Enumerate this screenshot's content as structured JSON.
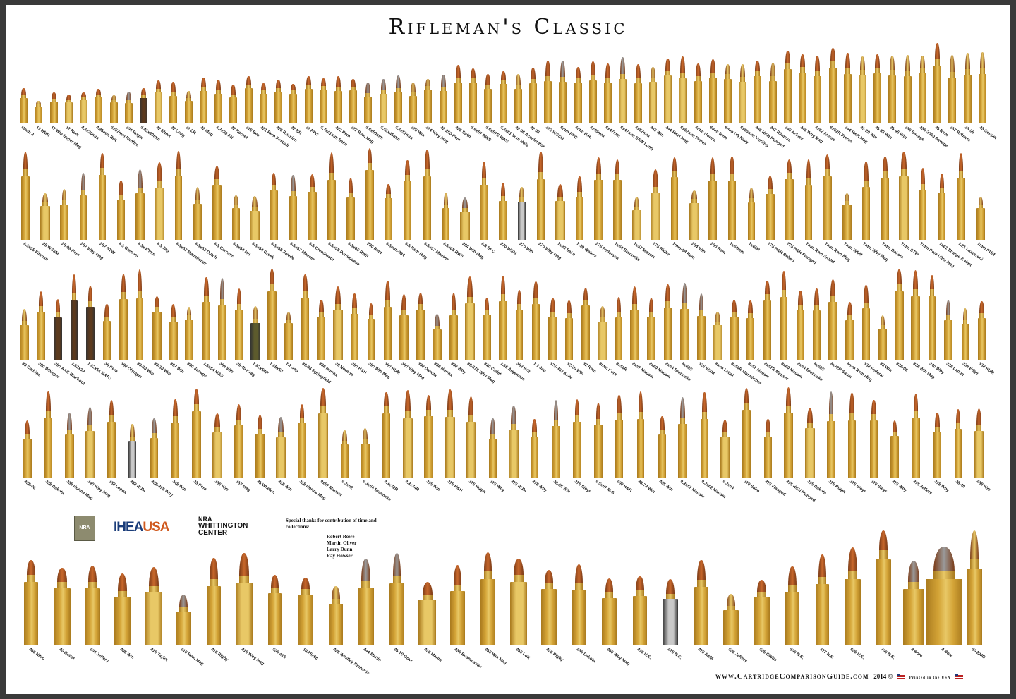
{
  "title": "Rifleman's Classic",
  "colors": {
    "brass": "#d4a437",
    "brass_light": "#e8c866",
    "brass_dark": "#a97a1e",
    "copper": "#c8682c",
    "lead": "#9a9a9a",
    "nickel": "#c9c9c9",
    "olive": "#5d5b2d",
    "brown": "#5c3a1e"
  },
  "rows": [
    [
      "Mach 2",
      "17 HMR",
      "17 Win Super Mag",
      "17 Rem",
      "4.6x30mm",
      "4.85mm Brit",
      "5x57mm Rimfire",
      "204 Ruger",
      "5.45x39mm",
      "22 Short",
      "22 Long",
      "22 LR",
      "22 Mag",
      "5.7x28 FN",
      "22 Hornet",
      "218 Bee",
      "221 Rem Fireball",
      "220 Russian",
      "22 BR",
      "22 PPC",
      "5.7x41mm Sako",
      "222 Rem",
      "222 Rem Mag",
      "5.6x50mm",
      "5.56x45mm",
      "5.6x57mm",
      "225 Win",
      "224 Wby Mag",
      "22-250 Rem",
      "220 Swift",
      "5.6x57 RWS",
      "5.6x57R RWS",
      "5.6x61 Vom Hofe",
      "22-06 Accelerator",
      "22-06",
      "223 WSSM",
      "6mm PPC",
      "6mm B.R.",
      "6x45mm",
      "6x47mm",
      "6x47mm SAW Long",
      "6x57mm",
      "243 Win",
      "244 H&H Mag",
      "6x62mm Freres",
      "6mm Norma",
      "6mm Rem",
      "6mm US Navy",
      "6x65mm Vierling",
      "240 H&H Flanged",
      "242 Rimless",
      "245 Ackley",
      "240 Wby Mag",
      "6x62 Freres",
      "6x62R Freres",
      "244 H&H Mag",
      "25-20 Win",
      "25-35 Win",
      "25-45 Win",
      "250 Savage",
      "250-3000 Savage",
      "25 Rem",
      "257 Roberts",
      "25-06",
      "25 Souper"
    ],
    [
      "6.5x55 Finnish",
      "25 WSSM",
      "25-06 Rem",
      "257 Wby Mag",
      "257 STW",
      "6.5 Grendel",
      "6.5x47mm",
      "6.5 Jap",
      "6.5x52 Mannlicher",
      "6.5x53 Dutch",
      "6.5 Carcano",
      "6.5x54 MS",
      "6.5x54 Greek",
      "6.5x55 Swede",
      "6.5x57 Mauser",
      "6.5 Creedmoor",
      "6.5x58 Portuguese",
      "6.5x65 RWS",
      "260 Rem",
      "6.5mm-284",
      "6.5 Rem Mag",
      "6.5x57 Mauser",
      "6.5x68 RWS",
      "264 Win Mag",
      "6.8 SPC",
      "270 WSM",
      "270 Win",
      "270 Wby Mag",
      "7x33 Sako",
      "7-30 Waters",
      "275 Pedersen",
      "7x64 Brenneke",
      "7x57 Mauser",
      "275 Rigby",
      "7mm-08 Rem",
      "284 Win",
      "280 Rem",
      "7x64mm",
      "7x65R",
      "275 H&H Belted",
      "275 H&H Flanged",
      "7mm Rem SAUM",
      "7mm Rem Mag",
      "7mm WSM",
      "7mm Wby Mag",
      "7mm Dakota",
      "7mm STW",
      "7mm Rem Ultra Mag",
      "7x61 Sharpe & Hart",
      "7.21 Lazzeroni",
      "7mm RUM"
    ],
    [
      "30 Carbine",
      "300 Whisper",
      "300 AAC Blackout",
      "7.62x39",
      "7.62x51 NATO",
      "30 Rem",
      "300 Olympic",
      "30-30 Win",
      "30-30 Win",
      "307 Win",
      "300 Savage",
      "7.5x54 MAS",
      "308 Win",
      "30-40 Krag",
      "7.62x54R",
      "7.65x53",
      "7.7 Jap",
      "30-06 Springfield",
      "308 Norma",
      "30 Newton",
      "300 H&H",
      "300 Win Mag",
      "300 RUM",
      "300 Wby Mag",
      "300 Dakota",
      "308 Norma",
      "300 Wby",
      "30-378 Wby Mag",
      "310 Cadet",
      "7.65 Argentine",
      "303 Brit",
      "7.7 Jap",
      "375-303 Axite",
      "32-20 Win",
      "32 Rem",
      "8mm Kurz",
      "8x56R",
      "8x57 Mauser",
      "8x60 Mauser",
      "8x64 Brenneke",
      "8x68S",
      "325 WSM",
      "8mm Lebel",
      "8x56R Mannlicher",
      "8x57 Mauser",
      "8x57R Mauser",
      "8x60 Mauser",
      "8x64 Brenneke",
      "8x68S",
      "8x72R Sauer",
      "8mm Rem Mag",
      "338 Federal",
      "33 Win",
      "338-06",
      "338 Win Mag",
      "340 Wby",
      "338 Lapua",
      "338 Edge",
      "338 RUM"
    ],
    [
      "338-06",
      "338 Dakota",
      "338 Norma Mag",
      "340 Wby Mag",
      "338 Lapua",
      "338 RUM",
      "338-378 Wby",
      "348 Win",
      "35 Rem",
      "356 Win",
      "357 Mag",
      "35 Whelen",
      "358 Win",
      "358 Norma Mag",
      "9x57 Mauser",
      "9.3x62",
      "9.3x64 Brenneke",
      "9.3x72R",
      "9.3x74R",
      "375 Win",
      "375 H&H",
      "375 Ruger",
      "375 Wby",
      "375 RUM",
      "378 Wby",
      "38-55 Win",
      "376 Steyr",
      "9.5x57 M-S",
      "400 H&H",
      "38-72 Win",
      "405 Win",
      "9.3x57 Mauser",
      "9.3x62 Mauser",
      "9.3x64",
      "370 Sako",
      "375 Flanged",
      "375 H&H Flanged",
      "375 Dakota",
      "375 Ruger",
      "375 Steyr",
      "376 Steyr",
      "375 Wby",
      "375 Jeffery",
      "378 Wby",
      "38-40",
      "458 Win"
    ],
    [
      "460 Nitro",
      "40 Bullet",
      "404 Jeffery",
      "405 Win",
      "416 Taylor",
      "416 Rem Mag",
      "416 Rigby",
      "416 Wby Mag",
      "500-416",
      "10.75x68",
      "425 Westley Richards",
      "444 Marlin",
      "45-70 Govt",
      "450 Marlin",
      "450 Bushmaster",
      "458 Win Mag",
      "458 Lott",
      "450 Rigby",
      "450 Dakota",
      "460 Wby Mag",
      "470 N.E.",
      "475 N.E.",
      "475 A&M",
      "500 Jeffery",
      "505 Gibbs",
      "500 N.E.",
      "577 N.E.",
      "600 N.E.",
      "700 N.E.",
      "8 Bore",
      "4 Bore",
      "50 BMG"
    ]
  ],
  "logos": {
    "nra_training": "NRA",
    "ihea_left": "IHEA",
    "ihea_right": "USA",
    "whittington_top": "NRA",
    "whittington_mid": "WHITTINGTON",
    "whittington_bot": "CENTER"
  },
  "thanks": {
    "heading": "Special thanks for contribution of time and collections:",
    "names": [
      "Robert Rowe",
      "Martin Oliver",
      "Larry Dunn",
      "Ray Howser"
    ]
  },
  "footer": {
    "site": "www.CartridgeComparisonGuide.com",
    "year": "2014 ©",
    "printed": "Printed in the USA"
  }
}
